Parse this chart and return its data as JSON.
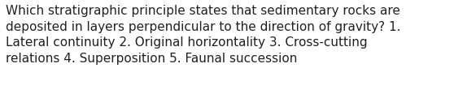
{
  "text_line1": "Which stratigraphic principle states that sedimentary rocks are",
  "text_line2": "deposited in layers perpendicular to the direction of gravity? 1.",
  "text_line3": "Lateral continuity 2. Original horizontality 3. Cross-cutting",
  "text_line4": "relations 4. Superposition 5. Faunal succession",
  "background_color": "#ffffff",
  "text_color": "#231f20",
  "font_size": 11.0,
  "fig_width": 5.58,
  "fig_height": 1.26,
  "dpi": 100
}
